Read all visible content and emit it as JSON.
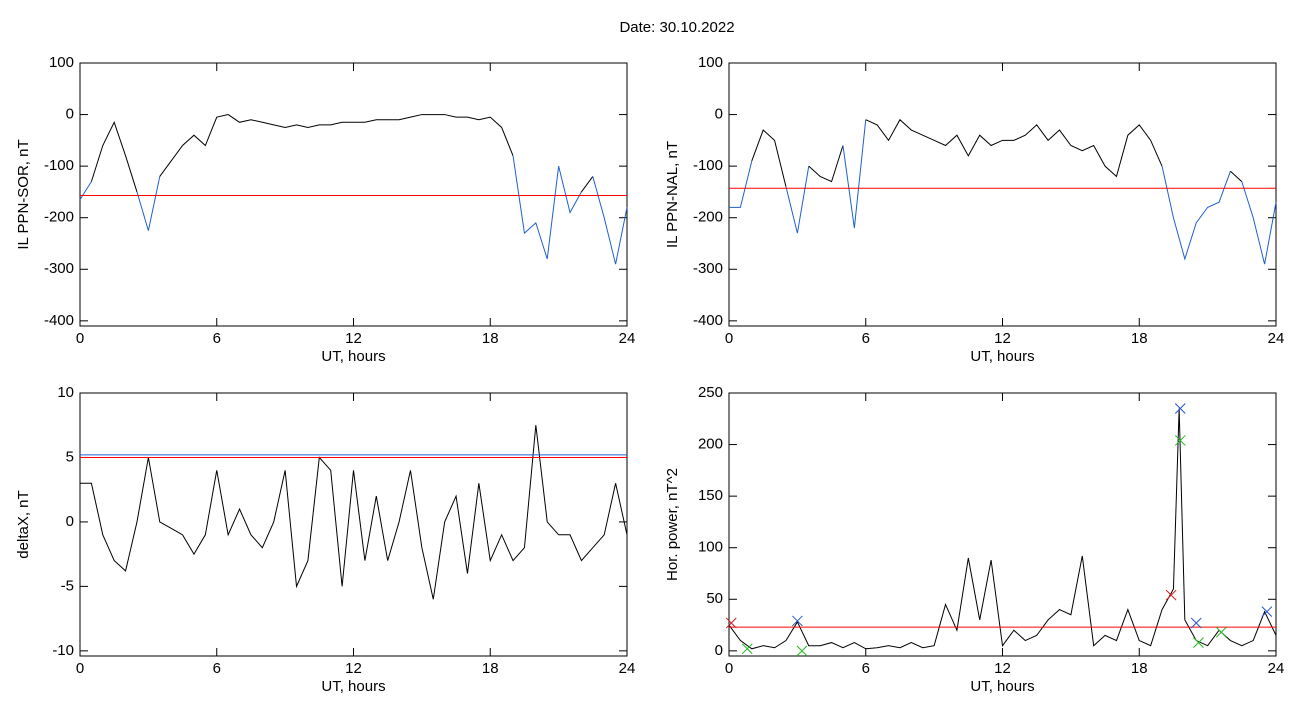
{
  "title": "Date:  30.10.2022",
  "chart_data": [
    {
      "type": "line",
      "ylabel": "IL PPN-SOR, nT",
      "xlabel": "UT, hours",
      "xlim": [
        0,
        24
      ],
      "xticks": [
        0,
        6,
        12,
        18,
        24
      ],
      "ylim": [
        -410,
        100
      ],
      "yticks": [
        -400,
        -300,
        -200,
        -100,
        0,
        100
      ],
      "x": [
        0,
        0.5,
        1,
        1.5,
        2,
        2.5,
        3,
        3.5,
        4,
        4.5,
        5,
        5.5,
        6,
        6.5,
        7,
        7.5,
        8,
        8.5,
        9,
        9.5,
        10,
        10.5,
        11,
        11.5,
        12,
        12.5,
        13,
        13.5,
        14,
        14.5,
        15,
        15.5,
        16,
        16.5,
        17,
        17.5,
        18,
        18.5,
        19,
        19.5,
        20,
        20.5,
        21,
        21.5,
        22,
        22.5,
        23,
        23.5,
        24
      ],
      "series": [
        {
          "color": "#000000",
          "below_color": "#1f5fd0",
          "values": [
            -165,
            -130,
            -60,
            -15,
            -80,
            -150,
            -225,
            -120,
            -90,
            -60,
            -40,
            -60,
            -5,
            0,
            -15,
            -10,
            -15,
            -20,
            -25,
            -20,
            -25,
            -20,
            -20,
            -15,
            -15,
            -15,
            -10,
            -10,
            -10,
            -5,
            0,
            0,
            0,
            -5,
            -5,
            -10,
            -5,
            -25,
            -80,
            -230,
            -210,
            -280,
            -100,
            -190,
            -150,
            -120,
            -200,
            -290,
            -180
          ]
        }
      ],
      "hlines": [
        {
          "value": -157,
          "color": "#ff0000"
        }
      ]
    },
    {
      "type": "line",
      "ylabel": "IL PPN-NAL, nT",
      "xlabel": "UT, hours",
      "xlim": [
        0,
        24
      ],
      "xticks": [
        0,
        6,
        12,
        18,
        24
      ],
      "ylim": [
        -410,
        100
      ],
      "yticks": [
        -400,
        -300,
        -200,
        -100,
        0,
        100
      ],
      "x": [
        0,
        0.5,
        1,
        1.5,
        2,
        2.5,
        3,
        3.5,
        4,
        4.5,
        5,
        5.5,
        6,
        6.5,
        7,
        7.5,
        8,
        8.5,
        9,
        9.5,
        10,
        10.5,
        11,
        11.5,
        12,
        12.5,
        13,
        13.5,
        14,
        14.5,
        15,
        15.5,
        16,
        16.5,
        17,
        17.5,
        18,
        18.5,
        19,
        19.5,
        20,
        20.5,
        21,
        21.5,
        22,
        22.5,
        23,
        23.5,
        24
      ],
      "series": [
        {
          "color": "#000000",
          "below_color": "#1f5fd0",
          "values": [
            -180,
            -180,
            -90,
            -30,
            -50,
            -140,
            -230,
            -100,
            -120,
            -130,
            -60,
            -220,
            -10,
            -20,
            -50,
            -10,
            -30,
            -40,
            -50,
            -60,
            -40,
            -80,
            -40,
            -60,
            -50,
            -50,
            -40,
            -20,
            -50,
            -30,
            -60,
            -70,
            -60,
            -100,
            -120,
            -40,
            -20,
            -50,
            -100,
            -200,
            -280,
            -210,
            -180,
            -170,
            -110,
            -130,
            -200,
            -290,
            -170
          ]
        }
      ],
      "hlines": [
        {
          "value": -143,
          "color": "#ff0000"
        }
      ]
    },
    {
      "type": "line",
      "ylabel": "deltaX, nT",
      "xlabel": "UT, hours",
      "xlim": [
        0,
        24
      ],
      "xticks": [
        0,
        6,
        12,
        18,
        24
      ],
      "ylim": [
        -10.4,
        10
      ],
      "yticks": [
        -10,
        -5,
        0,
        5,
        10
      ],
      "x": [
        0,
        0.5,
        1,
        1.5,
        2,
        2.5,
        3,
        3.5,
        4,
        4.5,
        5,
        5.5,
        6,
        6.5,
        7,
        7.5,
        8,
        8.5,
        9,
        9.5,
        10,
        10.5,
        11,
        11.5,
        12,
        12.5,
        13,
        13.5,
        14,
        14.5,
        15,
        15.5,
        16,
        16.5,
        17,
        17.5,
        18,
        18.5,
        19,
        19.5,
        20,
        20.5,
        21,
        21.5,
        22,
        22.5,
        23,
        23.5,
        24
      ],
      "series": [
        {
          "color": "#000000",
          "values": [
            3,
            3,
            -1,
            -3,
            -3.8,
            0,
            5,
            0,
            -0.5,
            -1,
            -2.5,
            -1,
            4,
            -1,
            1,
            -1,
            -2,
            0,
            4,
            -5,
            -3,
            5,
            4,
            -5,
            4,
            -3,
            2,
            -3,
            0,
            4,
            -2,
            -6,
            0,
            2,
            -4,
            3,
            -3,
            -1,
            -3,
            -2,
            7.5,
            0,
            -1,
            -1,
            -3,
            -2,
            -1,
            3,
            -1
          ]
        }
      ],
      "hlines": [
        {
          "value": 5.0,
          "color": "#ff0000"
        },
        {
          "value": 5.2,
          "color": "#1f5fd0"
        }
      ]
    },
    {
      "type": "line",
      "ylabel": "Hor. power, nT^2",
      "xlabel": "UT, hours",
      "xlim": [
        0,
        24
      ],
      "xticks": [
        0,
        6,
        12,
        18,
        24
      ],
      "ylim": [
        -5,
        250
      ],
      "yticks": [
        0,
        50,
        100,
        150,
        200,
        250
      ],
      "x": [
        0,
        0.5,
        1,
        1.5,
        2,
        2.5,
        3,
        3.5,
        4,
        4.5,
        5,
        5.5,
        6,
        6.5,
        7,
        7.5,
        8,
        8.5,
        9,
        9.5,
        10,
        10.5,
        11,
        11.5,
        12,
        12.5,
        13,
        13.5,
        14,
        14.5,
        15,
        15.5,
        16,
        16.5,
        17,
        17.5,
        18,
        18.5,
        19,
        19.5,
        19.75,
        20,
        20.5,
        21,
        21.5,
        22,
        22.5,
        23,
        23.5,
        24
      ],
      "series": [
        {
          "color": "#000000",
          "values": [
            25,
            10,
            2,
            5,
            3,
            10,
            28,
            5,
            5,
            8,
            3,
            8,
            2,
            3,
            5,
            3,
            8,
            3,
            5,
            45,
            20,
            90,
            30,
            88,
            5,
            20,
            10,
            15,
            30,
            40,
            35,
            92,
            5,
            15,
            10,
            40,
            10,
            5,
            40,
            60,
            235,
            30,
            10,
            5,
            20,
            10,
            5,
            10,
            38,
            15
          ]
        }
      ],
      "hlines": [
        {
          "value": 23,
          "color": "#ff0000"
        }
      ],
      "markers": [
        {
          "color": "#cc2222",
          "x": [
            0.1,
            19.4
          ],
          "values": [
            27,
            54
          ]
        },
        {
          "color": "#22bb22",
          "x": [
            0.8,
            3.2,
            19.8,
            20.6,
            21.6
          ],
          "values": [
            2,
            0,
            204,
            8,
            18
          ]
        },
        {
          "color": "#2255cc",
          "x": [
            3.0,
            19.8,
            20.5,
            23.6
          ],
          "values": [
            29,
            235,
            27,
            38
          ]
        }
      ]
    }
  ]
}
